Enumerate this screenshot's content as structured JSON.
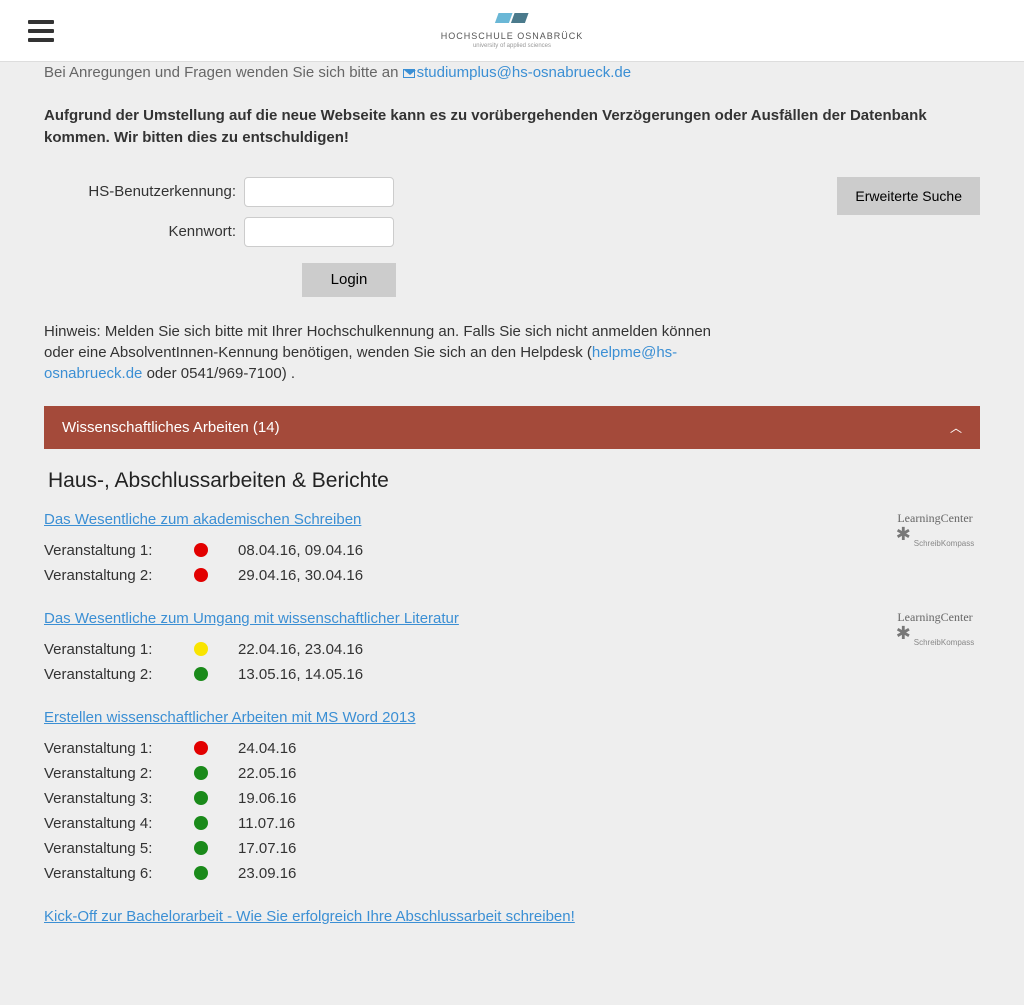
{
  "header": {
    "brandName": "HOCHSCHULE OSNABRÜCK",
    "brandSub": "university of applied sciences"
  },
  "intro": {
    "prefix": "Bei Anregungen und Fragen wenden Sie sich bitte an ",
    "email": "studiumplus@hs-osnabrueck.de"
  },
  "notice": "Aufgrund der Umstellung auf die neue Webseite kann es zu vorübergehenden Verzögerungen oder Ausfällen der Datenbank kommen. Wir bitten dies zu entschuldigen!",
  "login": {
    "userLabel": "HS-Benutzerkennung:",
    "passLabel": "Kennwort:",
    "button": "Login",
    "extendedSearch": "Erweiterte Suche"
  },
  "hint": {
    "text1": "Hinweis: Melden Sie sich bitte mit Ihrer Hochschulkennung an. Falls Sie sich nicht anmelden können oder eine AbsolventInnen-Kennung benötigen, wenden Sie sich an den Helpdesk (",
    "link": "helpme@hs-osnabrueck.de",
    "text2": " oder 0541/969-7100) ."
  },
  "accordion": {
    "title": "Wissenschaftliches Arbeiten (14)"
  },
  "sectionTitle": "Haus-, Abschlussarbeiten & Berichte",
  "lcBadge": {
    "title": "LearningCenter",
    "sub": "SchreibKompass"
  },
  "colors": {
    "red": "#e20000",
    "yellow": "#f9e400",
    "green": "#1a8a1a"
  },
  "courses": [
    {
      "title": "Das Wesentliche zum akademischen Schreiben",
      "hasBadge": true,
      "events": [
        {
          "label": "Veranstaltung 1:",
          "color": "red",
          "date": "08.04.16, 09.04.16"
        },
        {
          "label": "Veranstaltung 2:",
          "color": "red",
          "date": "29.04.16, 30.04.16"
        }
      ]
    },
    {
      "title": "Das Wesentliche zum Umgang mit wissenschaftlicher Literatur",
      "hasBadge": true,
      "events": [
        {
          "label": "Veranstaltung 1:",
          "color": "yellow",
          "date": "22.04.16, 23.04.16"
        },
        {
          "label": "Veranstaltung 2:",
          "color": "green",
          "date": "13.05.16, 14.05.16"
        }
      ]
    },
    {
      "title": "Erstellen wissenschaftlicher Arbeiten mit MS Word 2013",
      "hasBadge": false,
      "events": [
        {
          "label": "Veranstaltung 1:",
          "color": "red",
          "date": "24.04.16"
        },
        {
          "label": "Veranstaltung 2:",
          "color": "green",
          "date": "22.05.16"
        },
        {
          "label": "Veranstaltung 3:",
          "color": "green",
          "date": "19.06.16"
        },
        {
          "label": "Veranstaltung 4:",
          "color": "green",
          "date": "11.07.16"
        },
        {
          "label": "Veranstaltung 5:",
          "color": "green",
          "date": "17.07.16"
        },
        {
          "label": "Veranstaltung 6:",
          "color": "green",
          "date": "23.09.16"
        }
      ]
    },
    {
      "title": "Kick-Off zur Bachelorarbeit - Wie Sie erfolgreich Ihre Abschlussarbeit schreiben!",
      "hasBadge": false,
      "events": []
    }
  ]
}
